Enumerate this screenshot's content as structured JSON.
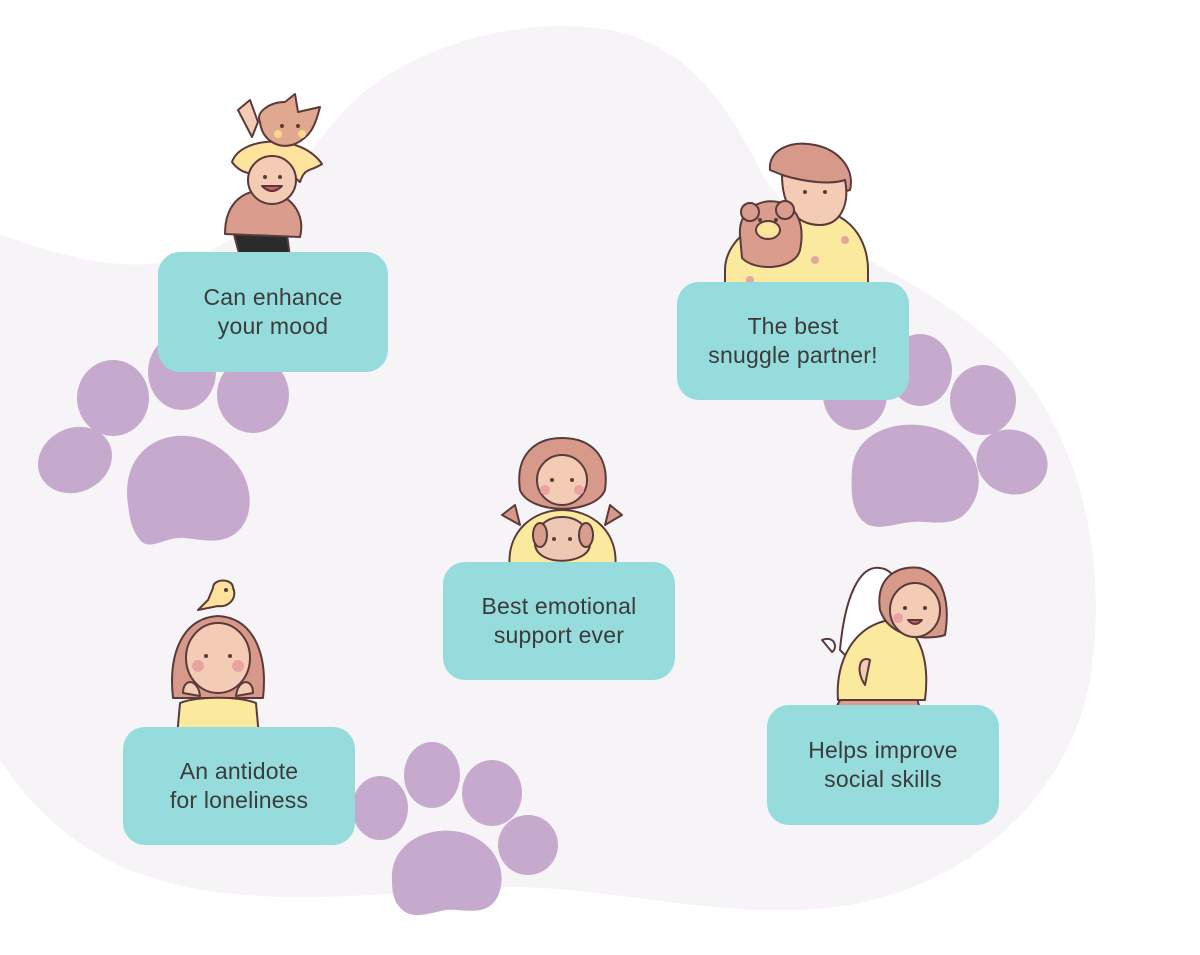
{
  "colors": {
    "blob": "#f6f4f7",
    "paw": "#c5aacd",
    "card": "#96dcdd",
    "text": "#3b3b3b",
    "skin": "#f4cbb4",
    "hair": "#d79a8a",
    "shirt_yellow": "#fbe99e",
    "shirt_pink": "#d99c8d",
    "outline": "#5a3a3a"
  },
  "benefits": [
    {
      "text": "Can enhance\nyour mood",
      "icon": "girl-with-dog-on-shoulders-icon"
    },
    {
      "text": "The best\nsnuggle partner!",
      "icon": "man-hugging-teddy-bear-icon"
    },
    {
      "text": "Best emotional\nsupport ever",
      "icon": "girl-holding-puppy-icon"
    },
    {
      "text": "An antidote\nfor loneliness",
      "icon": "girl-with-bird-on-head-icon"
    },
    {
      "text": "Helps improve\nsocial skills",
      "icon": "girl-with-dog-on-back-icon"
    }
  ]
}
